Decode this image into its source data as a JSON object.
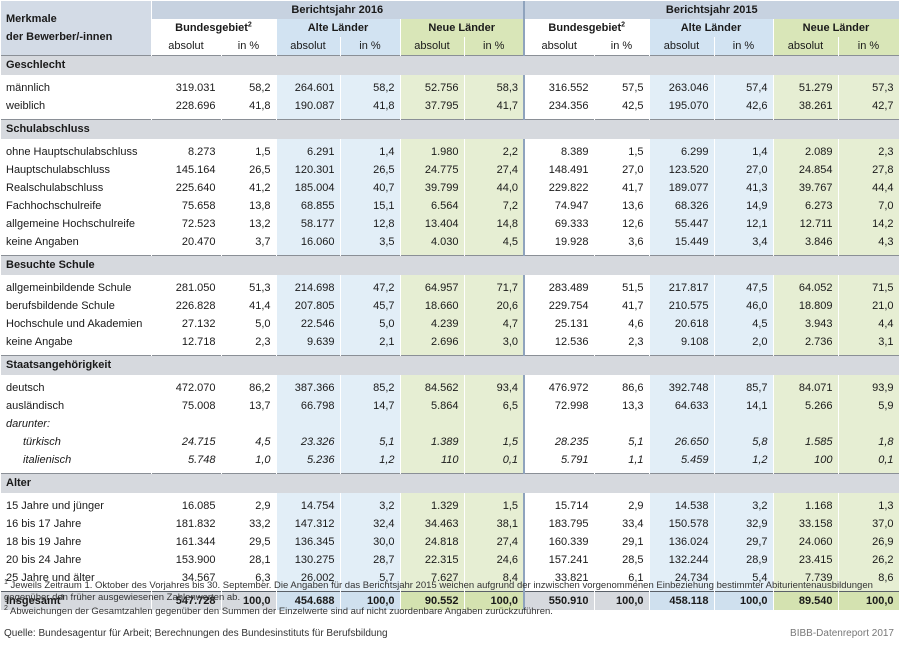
{
  "header": {
    "merkmale_line1": "Merkmale",
    "merkmale_line2": "der Bewerber/-innen",
    "year_2016": "Berichtsjahr 2016",
    "year_2015": "Berichtsjahr 2015",
    "groups": [
      "Bundesgebiet",
      "Alte Länder",
      "Neue Länder"
    ],
    "group_sup": "2",
    "sub_abs": "absolut",
    "sub_pct": "in %"
  },
  "sections": [
    {
      "title": "Geschlecht",
      "rows": [
        {
          "label": "männlich",
          "v": [
            "319.031",
            "58,2",
            "264.601",
            "58,2",
            "52.756",
            "58,3",
            "316.552",
            "57,5",
            "263.046",
            "57,4",
            "51.279",
            "57,3"
          ]
        },
        {
          "label": "weiblich",
          "v": [
            "228.696",
            "41,8",
            "190.087",
            "41,8",
            "37.795",
            "41,7",
            "234.356",
            "42,5",
            "195.070",
            "42,6",
            "38.261",
            "42,7"
          ]
        }
      ]
    },
    {
      "title": "Schulabschluss",
      "rows": [
        {
          "label": "ohne Hauptschulabschluss",
          "v": [
            "8.273",
            "1,5",
            "6.291",
            "1,4",
            "1.980",
            "2,2",
            "8.389",
            "1,5",
            "6.299",
            "1,4",
            "2.089",
            "2,3"
          ]
        },
        {
          "label": "Hauptschulabschluss",
          "v": [
            "145.164",
            "26,5",
            "120.301",
            "26,5",
            "24.775",
            "27,4",
            "148.491",
            "27,0",
            "123.520",
            "27,0",
            "24.854",
            "27,8"
          ]
        },
        {
          "label": "Realschulabschluss",
          "v": [
            "225.640",
            "41,2",
            "185.004",
            "40,7",
            "39.799",
            "44,0",
            "229.822",
            "41,7",
            "189.077",
            "41,3",
            "39.767",
            "44,4"
          ]
        },
        {
          "label": "Fachhochschulreife",
          "v": [
            "75.658",
            "13,8",
            "68.855",
            "15,1",
            "6.564",
            "7,2",
            "74.947",
            "13,6",
            "68.326",
            "14,9",
            "6.273",
            "7,0"
          ]
        },
        {
          "label": "allgemeine Hochschulreife",
          "v": [
            "72.523",
            "13,2",
            "58.177",
            "12,8",
            "13.404",
            "14,8",
            "69.333",
            "12,6",
            "55.447",
            "12,1",
            "12.711",
            "14,2"
          ]
        },
        {
          "label": "keine Angaben",
          "v": [
            "20.470",
            "3,7",
            "16.060",
            "3,5",
            "4.030",
            "4,5",
            "19.928",
            "3,6",
            "15.449",
            "3,4",
            "3.846",
            "4,3"
          ]
        }
      ]
    },
    {
      "title": "Besuchte Schule",
      "rows": [
        {
          "label": "allgemeinbildende Schule",
          "v": [
            "281.050",
            "51,3",
            "214.698",
            "47,2",
            "64.957",
            "71,7",
            "283.489",
            "51,5",
            "217.817",
            "47,5",
            "64.052",
            "71,5"
          ]
        },
        {
          "label": "berufsbildende Schule",
          "v": [
            "226.828",
            "41,4",
            "207.805",
            "45,7",
            "18.660",
            "20,6",
            "229.754",
            "41,7",
            "210.575",
            "46,0",
            "18.809",
            "21,0"
          ]
        },
        {
          "label": "Hochschule und Akademien",
          "v": [
            "27.132",
            "5,0",
            "22.546",
            "5,0",
            "4.239",
            "4,7",
            "25.131",
            "4,6",
            "20.618",
            "4,5",
            "3.943",
            "4,4"
          ]
        },
        {
          "label": "keine Angabe",
          "v": [
            "12.718",
            "2,3",
            "9.639",
            "2,1",
            "2.696",
            "3,0",
            "12.536",
            "2,3",
            "9.108",
            "2,0",
            "2.736",
            "3,1"
          ]
        }
      ]
    },
    {
      "title": "Staatsangehörigkeit",
      "rows": [
        {
          "label": "deutsch",
          "v": [
            "472.070",
            "86,2",
            "387.366",
            "85,2",
            "84.562",
            "93,4",
            "476.972",
            "86,6",
            "392.748",
            "85,7",
            "84.071",
            "93,9"
          ]
        },
        {
          "label": "ausländisch",
          "v": [
            "75.008",
            "13,7",
            "66.798",
            "14,7",
            "5.864",
            "6,5",
            "72.998",
            "13,3",
            "64.633",
            "14,1",
            "5.266",
            "5,9"
          ]
        },
        {
          "label": "darunter:",
          "italic": true,
          "v": [
            "",
            "",
            "",
            "",
            "",
            "",
            "",
            "",
            "",
            "",
            "",
            ""
          ]
        },
        {
          "label": "türkisch",
          "italic": true,
          "indent": true,
          "v": [
            "24.715",
            "4,5",
            "23.326",
            "5,1",
            "1.389",
            "1,5",
            "28.235",
            "5,1",
            "26.650",
            "5,8",
            "1.585",
            "1,8"
          ]
        },
        {
          "label": "italienisch",
          "italic": true,
          "indent": true,
          "v": [
            "5.748",
            "1,0",
            "5.236",
            "1,2",
            "110",
            "0,1",
            "5.791",
            "1,1",
            "5.459",
            "1,2",
            "100",
            "0,1"
          ]
        }
      ]
    },
    {
      "title": "Alter",
      "rows": [
        {
          "label": "15 Jahre und jünger",
          "v": [
            "16.085",
            "2,9",
            "14.754",
            "3,2",
            "1.329",
            "1,5",
            "15.714",
            "2,9",
            "14.538",
            "3,2",
            "1.168",
            "1,3"
          ]
        },
        {
          "label": "16 bis 17 Jahre",
          "v": [
            "181.832",
            "33,2",
            "147.312",
            "32,4",
            "34.463",
            "38,1",
            "183.795",
            "33,4",
            "150.578",
            "32,9",
            "33.158",
            "37,0"
          ]
        },
        {
          "label": "18 bis 19 Jahre",
          "v": [
            "161.344",
            "29,5",
            "136.345",
            "30,0",
            "24.818",
            "27,4",
            "160.339",
            "29,1",
            "136.024",
            "29,7",
            "24.060",
            "26,9"
          ]
        },
        {
          "label": "20 bis 24 Jahre",
          "v": [
            "153.900",
            "28,1",
            "130.275",
            "28,7",
            "22.315",
            "24,6",
            "157.241",
            "28,5",
            "132.244",
            "28,9",
            "23.415",
            "26,2"
          ]
        },
        {
          "label": "25 Jahre und älter",
          "v": [
            "34.567",
            "6,3",
            "26.002",
            "5,7",
            "7.627",
            "8,4",
            "33.821",
            "6,1",
            "24.734",
            "5,4",
            "7.739",
            "8,6"
          ]
        }
      ]
    }
  ],
  "total": {
    "label": "Insgesamt",
    "sup": "3",
    "v": [
      "547.728",
      "100,0",
      "454.688",
      "100,0",
      "90.552",
      "100,0",
      "550.910",
      "100,0",
      "458.118",
      "100,0",
      "89.540",
      "100,0"
    ]
  },
  "footnotes": [
    {
      "sup": "1",
      "text": "Jeweils Zeitraum 1. Oktober des Vorjahres bis 30. September. Die Angaben für das Berichtsjahr 2015 weichen aufgrund der inzwischen vorgenommenen Einbeziehung bestimmter Abiturientenausbildungen gegenüber den früher ausgewiesenen Zahlenwerten ab."
    },
    {
      "sup": "2",
      "text": "Abweichungen der Gesamtzahlen gegenüber den Summen der Einzelwerte sind auf nicht zuordenbare Angaben zurückzuführen."
    }
  ],
  "source": "Quelle: Bundesagentur für Arbeit; Berechnungen des Bundesinstituts für Berufsbildung",
  "credit": "BIBB-Datenreport 2017"
}
